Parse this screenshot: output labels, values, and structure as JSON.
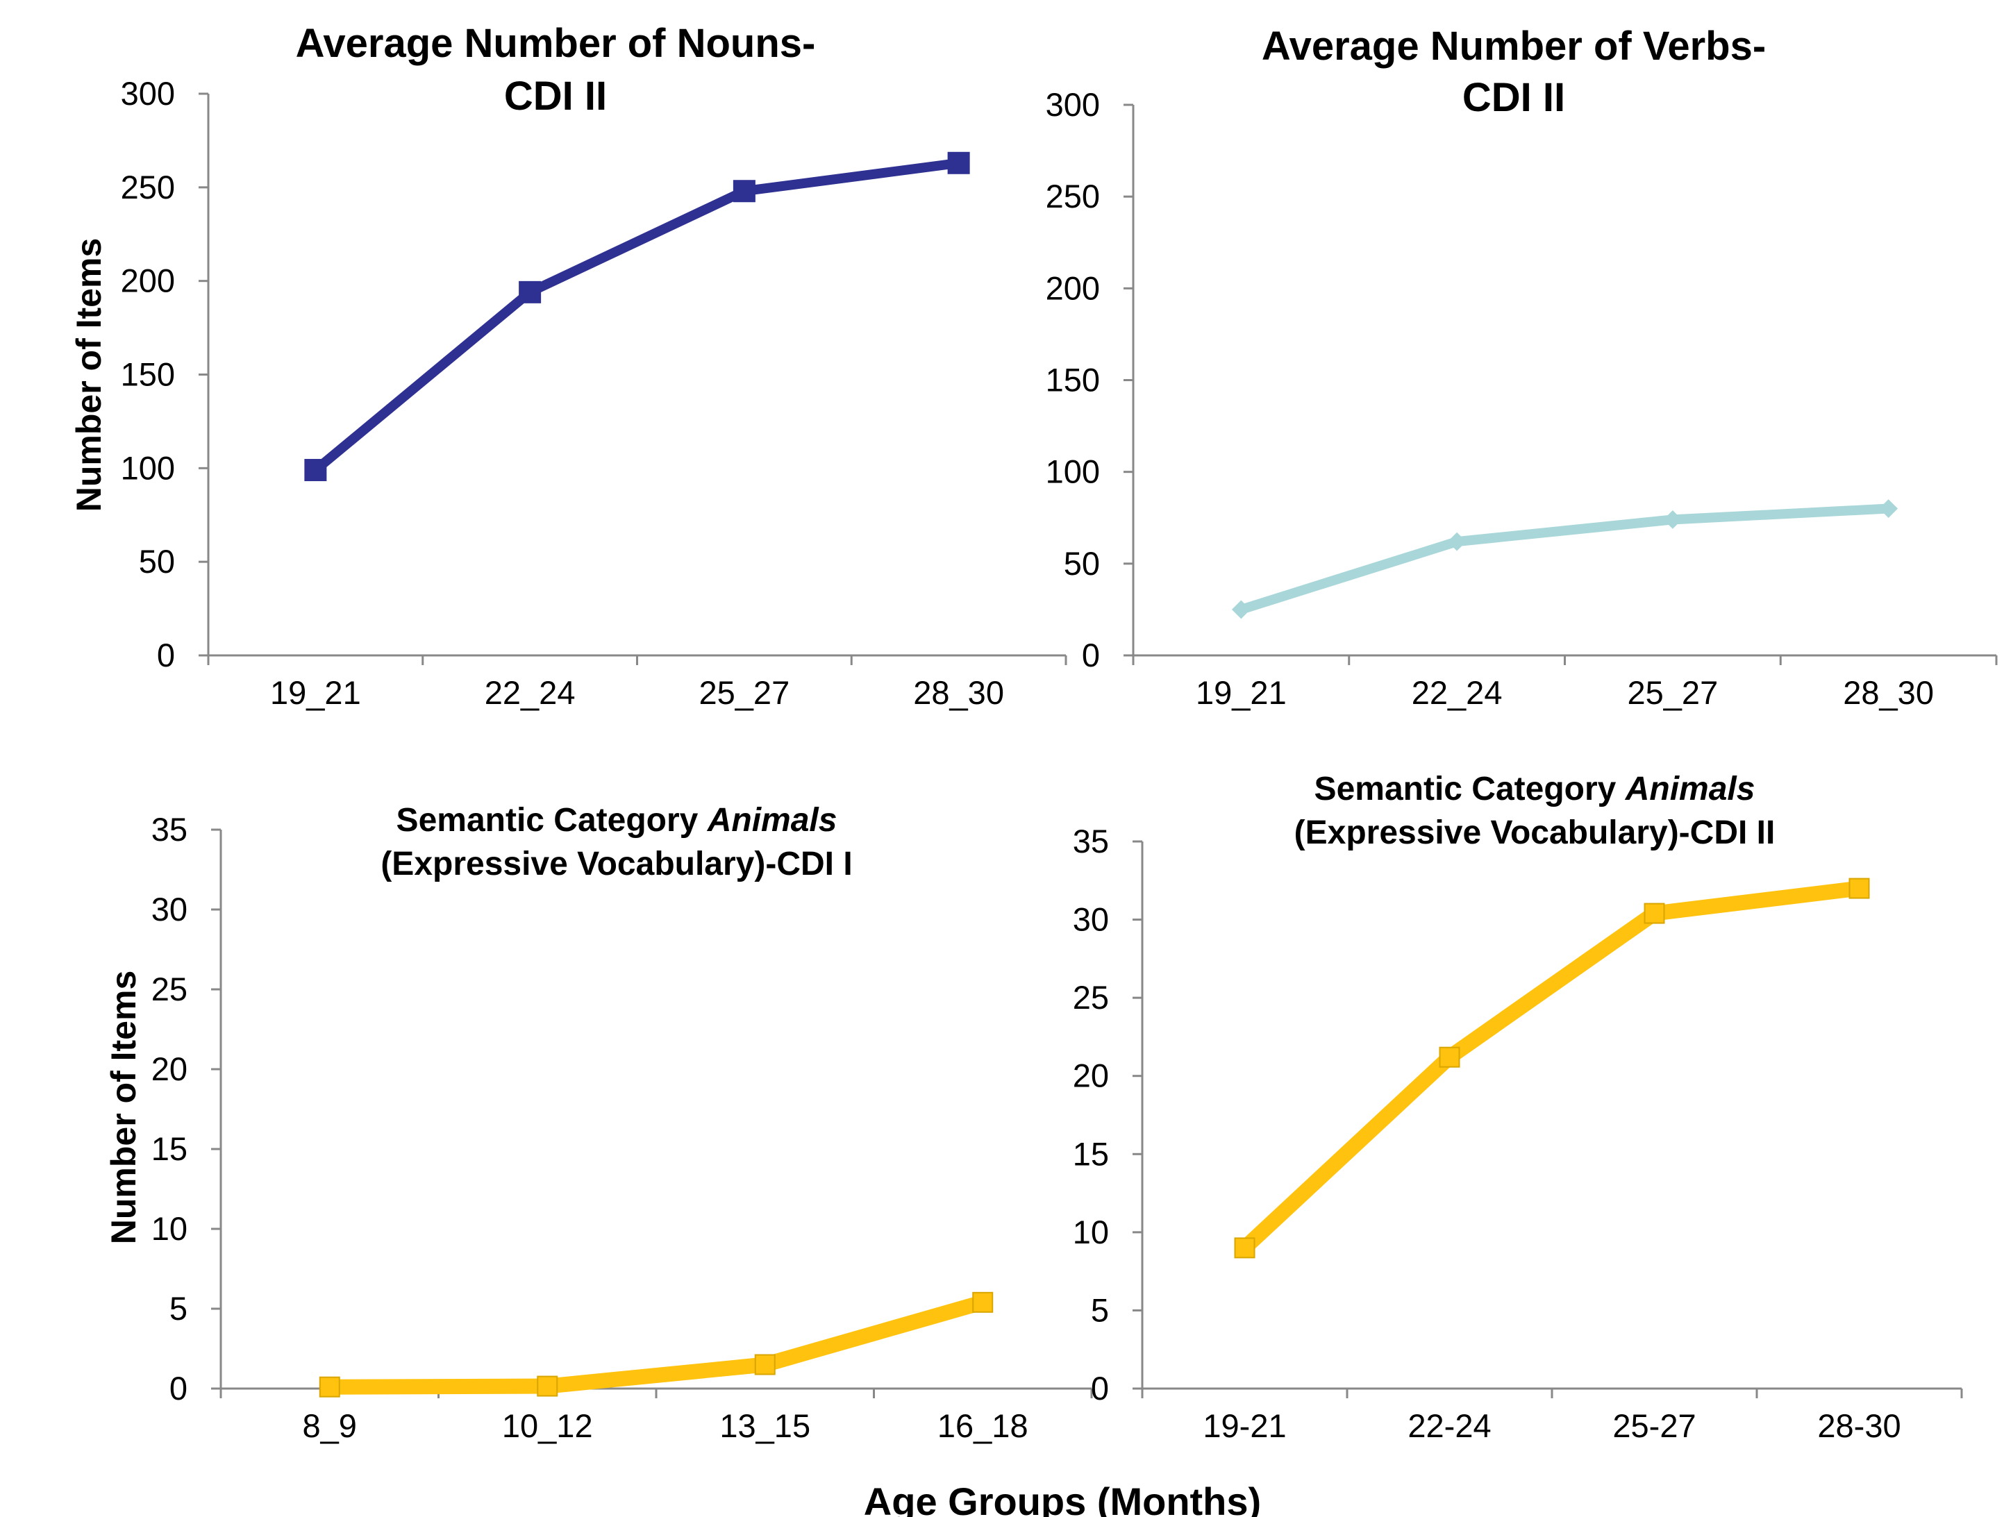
{
  "colors": {
    "navy": "#2E3192",
    "light_teal": "#A9D7D9",
    "gold": "#FFC20E"
  },
  "figure": {
    "y_axis_label": "Number of  Items",
    "x_axis_label": "Age Groups (Months)"
  },
  "chart_data": [
    {
      "id": "nouns",
      "type": "line",
      "title_lines": [
        [
          {
            "t": "Average Number of Nouns-"
          }
        ],
        [
          {
            "t": "CDI II"
          }
        ]
      ],
      "categories": [
        "19_21",
        "22_24",
        "25_27",
        "28_30"
      ],
      "ylim": [
        0,
        300
      ],
      "yticks": [
        0,
        50,
        100,
        150,
        200,
        250,
        300
      ],
      "ylabel": "Number of  Items",
      "xlabel": "",
      "series": [
        {
          "values": [
            99,
            194,
            248,
            263
          ],
          "color": "#2E3192",
          "marker": "square"
        }
      ]
    },
    {
      "id": "verbs",
      "type": "line",
      "title_lines": [
        [
          {
            "t": "Average Number of Verbs-"
          }
        ],
        [
          {
            "t": "CDI II"
          }
        ]
      ],
      "categories": [
        "19_21",
        "22_24",
        "25_27",
        "28_30"
      ],
      "ylim": [
        0,
        300
      ],
      "yticks": [
        0,
        50,
        100,
        150,
        200,
        250,
        300
      ],
      "ylabel": "",
      "xlabel": "",
      "series": [
        {
          "values": [
            25,
            62,
            74,
            80
          ],
          "color": "#A9D7D9",
          "marker": "diamond"
        }
      ]
    },
    {
      "id": "animals-cdi1",
      "type": "line",
      "title_lines": [
        [
          {
            "t": "Semantic Category "
          },
          {
            "t": "Animals",
            "i": true
          }
        ],
        [
          {
            "t": "(Expressive Vocabulary)-CDI I"
          }
        ]
      ],
      "categories": [
        "8_9",
        "10_12",
        "13_15",
        "16_18"
      ],
      "ylim": [
        0,
        35
      ],
      "yticks": [
        0,
        5,
        10,
        15,
        20,
        25,
        30,
        35
      ],
      "ylabel": "Number of  Items",
      "xlabel": "",
      "series": [
        {
          "values": [
            0.1,
            0.15,
            1.5,
            5.4
          ],
          "color": "#FFC20E",
          "marker": "square"
        }
      ]
    },
    {
      "id": "animals-cdi2",
      "type": "line",
      "title_lines": [
        [
          {
            "t": "Semantic Category "
          },
          {
            "t": "Animals",
            "i": true
          }
        ],
        [
          {
            "t": "(Expressive Vocabulary)-CDI II"
          }
        ]
      ],
      "categories": [
        "19-21",
        "22-24",
        "25-27",
        "28-30"
      ],
      "ylim": [
        0,
        35
      ],
      "yticks": [
        0,
        5,
        10,
        15,
        20,
        25,
        30,
        35
      ],
      "ylabel": "",
      "xlabel": "Age Groups (Months)",
      "series": [
        {
          "values": [
            9,
            21.2,
            30.4,
            32
          ],
          "color": "#FFC20E",
          "marker": "square"
        }
      ]
    }
  ]
}
